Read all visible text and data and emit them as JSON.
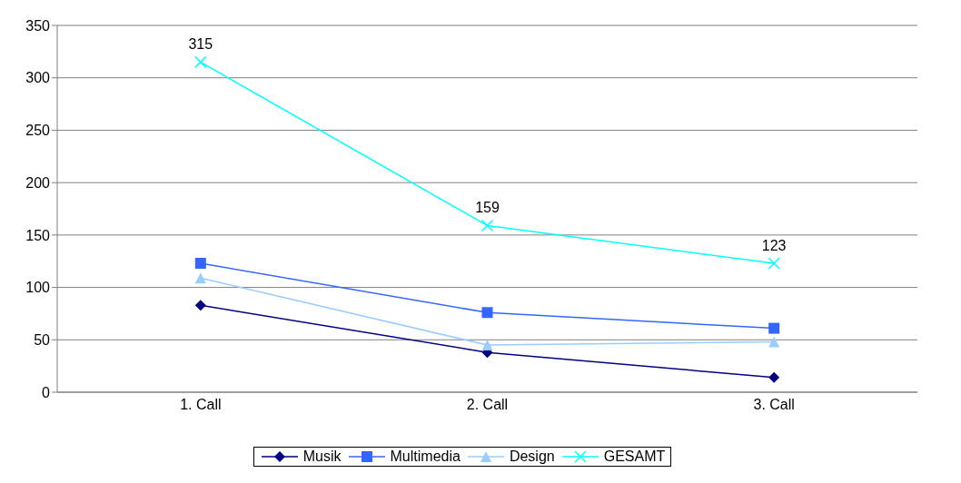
{
  "chart_data": {
    "type": "line",
    "categories": [
      "1. Call",
      "2. Call",
      "3. Call"
    ],
    "series": [
      {
        "name": "Musik",
        "color": "#000080",
        "marker": "diamond",
        "values": [
          83,
          38,
          14
        ]
      },
      {
        "name": "Multimedia",
        "color": "#3366ff",
        "marker": "square",
        "values": [
          123,
          76,
          61
        ]
      },
      {
        "name": "Design",
        "color": "#99ccff",
        "marker": "triangle",
        "values": [
          109,
          45,
          48
        ]
      },
      {
        "name": "GESAMT",
        "color": "#00ffff",
        "marker": "cross",
        "values": [
          315,
          159,
          123
        ],
        "value_labels": [
          "315",
          "159",
          "123"
        ]
      }
    ],
    "ylim": [
      0,
      350
    ],
    "yticks": [
      0,
      50,
      100,
      150,
      200,
      250,
      300,
      350
    ],
    "grid": "y",
    "legend": "bottom"
  }
}
